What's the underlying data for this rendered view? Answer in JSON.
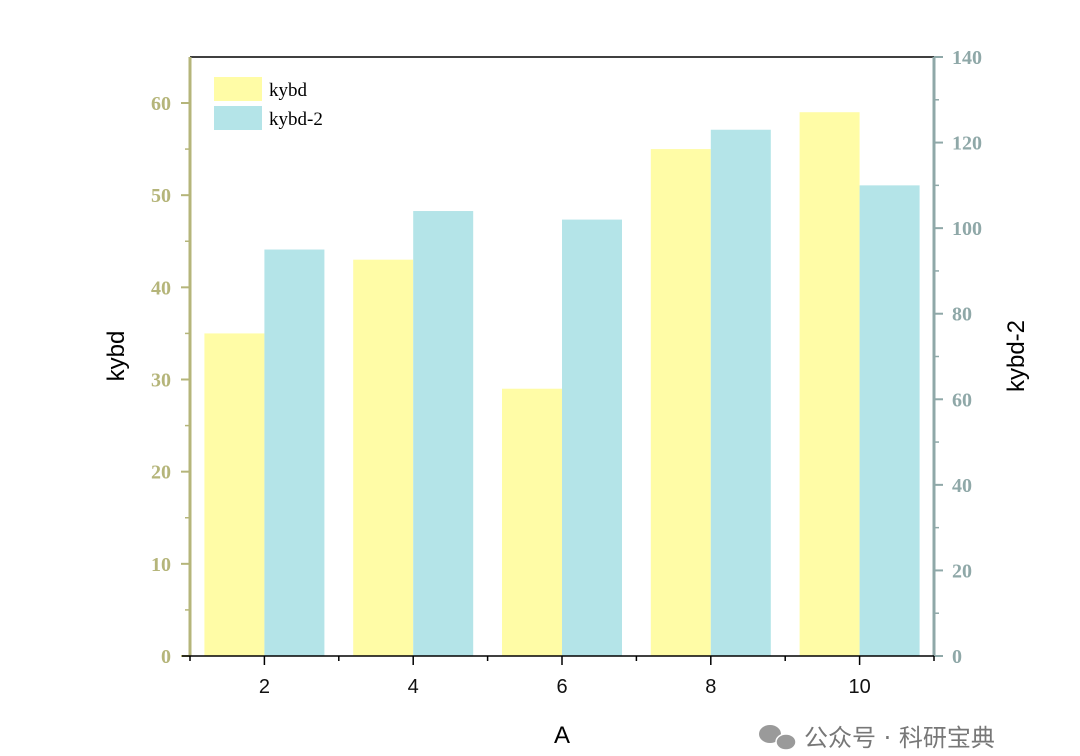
{
  "chart_data": {
    "type": "bar",
    "xlabel": "A",
    "categories": [
      "2",
      "4",
      "6",
      "8",
      "10"
    ],
    "series": [
      {
        "name": "kybd",
        "axis": "left",
        "color": "#fffca6",
        "values": [
          35,
          43,
          29,
          55,
          59
        ]
      },
      {
        "name": "kybd-2",
        "axis": "right",
        "color": "#b4e4e8",
        "values": [
          95,
          104,
          102,
          123,
          110
        ]
      }
    ],
    "y_left": {
      "label": "kybd",
      "lim": [
        0,
        65
      ],
      "ticks": [
        0,
        10,
        20,
        30,
        40,
        50,
        60
      ],
      "color": "#b5b57a"
    },
    "y_right": {
      "label": "kybd-2",
      "lim": [
        0,
        140
      ],
      "ticks": [
        0,
        20,
        40,
        60,
        80,
        100,
        120,
        140
      ],
      "color": "#8fa8a8"
    },
    "grid": false,
    "legend_position": "top-left"
  },
  "watermark": "公众号 · 科研宝典"
}
